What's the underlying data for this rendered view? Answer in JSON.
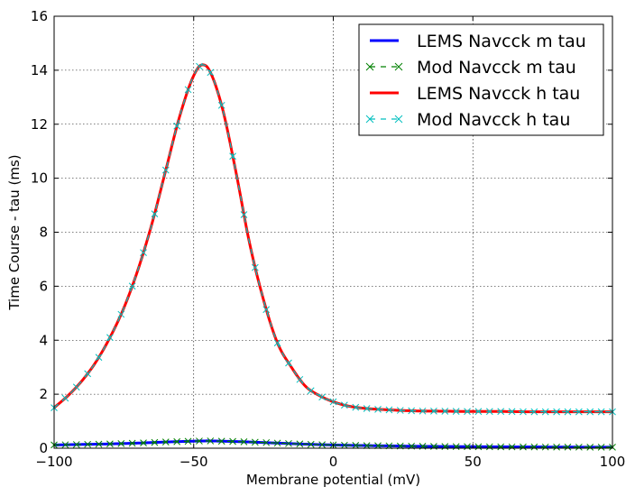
{
  "chart_data": {
    "type": "line",
    "xlabel": "Membrane potential (mV)",
    "ylabel": "Time Course - tau (ms)",
    "xlim": [
      -100,
      100
    ],
    "ylim": [
      0,
      16
    ],
    "xticks": [
      -100,
      -50,
      0,
      50,
      100
    ],
    "xtick_labels": [
      "−100",
      "−50",
      "0",
      "50",
      "100"
    ],
    "yticks": [
      0,
      2,
      4,
      6,
      8,
      10,
      12,
      14,
      16
    ],
    "ytick_labels": [
      "0",
      "2",
      "4",
      "6",
      "8",
      "10",
      "12",
      "14",
      "16"
    ],
    "grid": true,
    "legend_position": "top-right",
    "legend": [
      "LEMS Navcck m tau",
      "Mod Navcck m tau",
      "LEMS Navcck h tau",
      "Mod Navcck h tau"
    ],
    "series": [
      {
        "name": "LEMS Navcck m tau",
        "style": "solid",
        "color": "#0000ff",
        "x": [
          -100,
          -90,
          -80,
          -70,
          -60,
          -50,
          -45,
          -40,
          -30,
          -20,
          -10,
          0,
          10,
          20,
          30,
          40,
          50,
          60,
          70,
          80,
          90,
          100
        ],
        "y": [
          0.12,
          0.14,
          0.16,
          0.19,
          0.23,
          0.26,
          0.27,
          0.26,
          0.23,
          0.19,
          0.15,
          0.12,
          0.1,
          0.085,
          0.072,
          0.063,
          0.056,
          0.05,
          0.046,
          0.042,
          0.039,
          0.037
        ]
      },
      {
        "name": "Mod Navcck m tau",
        "style": "dashed-x",
        "color": "#008000",
        "x": [
          -100,
          -90,
          -80,
          -70,
          -60,
          -50,
          -45,
          -40,
          -30,
          -20,
          -10,
          0,
          10,
          20,
          30,
          40,
          50,
          60,
          70,
          80,
          90,
          100
        ],
        "y": [
          0.12,
          0.14,
          0.16,
          0.19,
          0.23,
          0.26,
          0.27,
          0.26,
          0.23,
          0.19,
          0.15,
          0.12,
          0.1,
          0.085,
          0.072,
          0.063,
          0.056,
          0.05,
          0.046,
          0.042,
          0.039,
          0.037
        ]
      },
      {
        "name": "LEMS Navcck h tau",
        "style": "solid",
        "color": "#ff0000",
        "x": [
          -100,
          -95,
          -90,
          -85,
          -80,
          -75,
          -70,
          -65,
          -60,
          -55,
          -50,
          -47,
          -45,
          -40,
          -35,
          -30,
          -25,
          -20,
          -15,
          -10,
          -5,
          0,
          5,
          10,
          20,
          30,
          40,
          50,
          60,
          70,
          80,
          90,
          100
        ],
        "y": [
          1.5,
          1.95,
          2.5,
          3.2,
          4.1,
          5.2,
          6.6,
          8.3,
          10.3,
          12.3,
          13.8,
          14.2,
          14.1,
          12.7,
          10.3,
          7.6,
          5.5,
          3.9,
          3.0,
          2.3,
          1.95,
          1.72,
          1.57,
          1.49,
          1.42,
          1.38,
          1.37,
          1.36,
          1.36,
          1.35,
          1.35,
          1.35,
          1.35
        ]
      },
      {
        "name": "Mod Navcck h tau",
        "style": "dashed-x",
        "color": "#00bfbf",
        "x": [
          -100,
          -95,
          -90,
          -85,
          -80,
          -75,
          -70,
          -65,
          -60,
          -55,
          -50,
          -47,
          -45,
          -40,
          -35,
          -30,
          -25,
          -20,
          -15,
          -10,
          -5,
          0,
          5,
          10,
          20,
          30,
          40,
          50,
          60,
          70,
          80,
          90,
          100
        ],
        "y": [
          1.5,
          1.95,
          2.5,
          3.2,
          4.1,
          5.2,
          6.6,
          8.3,
          10.3,
          12.3,
          13.8,
          14.2,
          14.1,
          12.7,
          10.3,
          7.6,
          5.5,
          3.9,
          3.0,
          2.3,
          1.95,
          1.72,
          1.57,
          1.49,
          1.42,
          1.38,
          1.37,
          1.36,
          1.36,
          1.35,
          1.35,
          1.35,
          1.35
        ]
      }
    ]
  }
}
